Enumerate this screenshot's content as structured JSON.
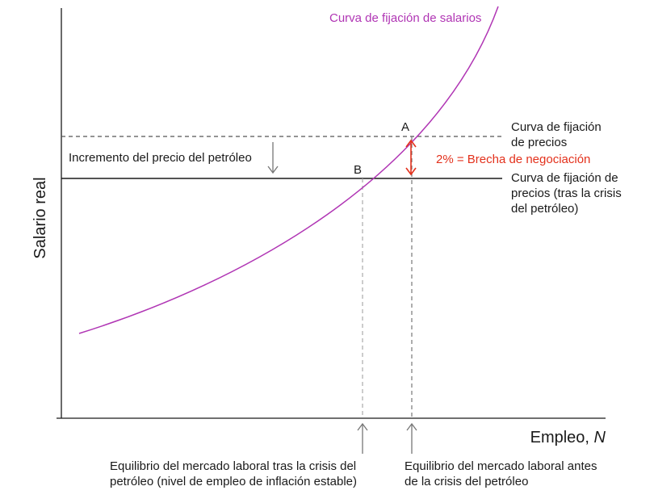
{
  "axes": {
    "y_label": "Salario real",
    "x_label": "Empleo, ",
    "x_label_var": "N"
  },
  "curves": {
    "wage_setting": "Curva de fijación de salarios",
    "price_setting_lines": [
      "Curva de fijación",
      "de precios"
    ],
    "price_setting_after_lines": [
      "Curva de fijación de",
      "precios (tras la crisis",
      "del petróleo)"
    ]
  },
  "points": {
    "a": "A",
    "b": "B"
  },
  "annotations": {
    "oil_price_increase": "Incremento del precio del petróleo",
    "bargaining_gap": "2% = Brecha de negociación",
    "equilibrium_after_lines": [
      "Equilibrio del mercado laboral tras la crisis del",
      "petróleo (nivel de empleo de inflación estable)"
    ],
    "equilibrium_before_lines": [
      "Equilibrio del mercado laboral antes",
      "de la crisis del petróleo"
    ]
  },
  "colors": {
    "wage_curve": "#b035b4",
    "gap_arrow": "#e3311c",
    "axis": "#1a1a1a",
    "dashed_line": "#555555",
    "guide_line": "#aaaaaa",
    "arrow_gray": "#777777"
  }
}
